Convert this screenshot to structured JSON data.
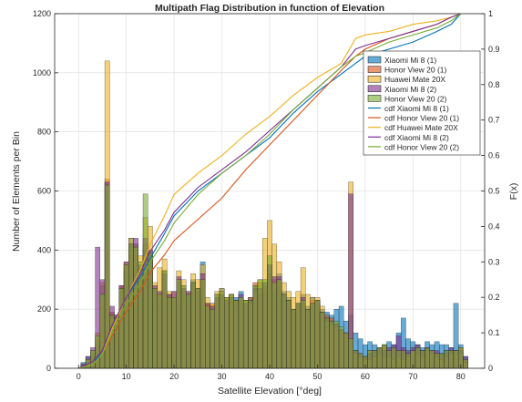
{
  "chart_data": {
    "type": "bar",
    "title": "Multipath Flag Distribution in function of Elevation",
    "xlabel": "Satellite Elevation [°deg]",
    "ylabel": "Number of Elements per Bin",
    "ylabel_right": "F(x)",
    "xlim": [
      -5,
      85
    ],
    "ylim": [
      0,
      1200
    ],
    "ylim_right": [
      0,
      1
    ],
    "grid": true,
    "legend_position": "top-right",
    "x_ticks": [
      "0",
      "10",
      "20",
      "30",
      "40",
      "50",
      "60",
      "70",
      "80"
    ],
    "y_ticks": [
      "0",
      "200",
      "400",
      "600",
      "800",
      "1000",
      "1200"
    ],
    "y_ticks_right": [
      "0",
      "0.1",
      "0.2",
      "0.3",
      "0.4",
      "0.5",
      "0.6",
      "0.7",
      "0.8",
      "0.9",
      "1"
    ],
    "bin_x": [
      1,
      2,
      3,
      4,
      5,
      6,
      7,
      8,
      9,
      10,
      11,
      12,
      13,
      14,
      15,
      16,
      17,
      18,
      19,
      20,
      21,
      22,
      23,
      24,
      25,
      26,
      27,
      28,
      29,
      30,
      31,
      32,
      33,
      34,
      35,
      36,
      37,
      38,
      39,
      40,
      41,
      42,
      43,
      44,
      45,
      46,
      47,
      48,
      49,
      50,
      51,
      52,
      53,
      54,
      55,
      56,
      57,
      58,
      59,
      60,
      61,
      62,
      63,
      64,
      65,
      66,
      67,
      68,
      69,
      70,
      71,
      72,
      73,
      74,
      75,
      76,
      77,
      78,
      79,
      80,
      81
    ],
    "series": [
      {
        "name": "Xiaomi Mi 8 (1)",
        "kind": "histogram",
        "color": "#0072BD",
        "values": [
          20,
          40,
          50,
          80,
          280,
          630,
          180,
          170,
          260,
          330,
          440,
          420,
          330,
          400,
          390,
          260,
          240,
          330,
          250,
          240,
          290,
          260,
          250,
          300,
          260,
          360,
          200,
          200,
          250,
          270,
          240,
          250,
          240,
          260,
          230,
          240,
          280,
          250,
          260,
          300,
          260,
          320,
          260,
          240,
          200,
          220,
          250,
          210,
          240,
          230,
          200,
          190,
          180,
          200,
          210,
          160,
          180,
          120,
          100,
          80,
          90,
          80,
          70,
          80,
          90,
          80,
          120,
          170,
          100,
          90,
          80,
          70,
          90,
          80,
          90,
          80,
          80,
          70,
          220,
          80,
          40
        ]
      },
      {
        "name": "Honor View 20 (1)",
        "kind": "histogram",
        "color": "#D95319",
        "values": [
          10,
          20,
          40,
          100,
          230,
          640,
          190,
          180,
          280,
          350,
          410,
          400,
          340,
          420,
          380,
          270,
          250,
          330,
          240,
          240,
          300,
          280,
          250,
          280,
          270,
          300,
          220,
          220,
          250,
          260,
          240,
          250,
          230,
          230,
          230,
          240,
          290,
          290,
          280,
          320,
          300,
          300,
          250,
          230,
          200,
          220,
          220,
          200,
          230,
          230,
          190,
          180,
          170,
          150,
          130,
          110,
          100,
          60,
          50,
          40,
          60,
          60,
          70,
          80,
          60,
          70,
          60,
          60,
          50,
          60,
          70,
          60,
          70,
          60,
          50,
          50,
          50,
          60,
          60,
          70,
          30
        ]
      },
      {
        "name": "Huawei Mate 20X",
        "kind": "histogram",
        "color": "#EDB120",
        "values": [
          10,
          30,
          60,
          120,
          290,
          1040,
          170,
          160,
          270,
          360,
          440,
          420,
          380,
          510,
          480,
          290,
          340,
          370,
          260,
          260,
          330,
          300,
          260,
          320,
          300,
          350,
          240,
          220,
          260,
          270,
          240,
          250,
          230,
          240,
          230,
          220,
          260,
          300,
          440,
          500,
          420,
          360,
          290,
          260,
          240,
          260,
          340,
          250,
          240,
          240,
          210,
          160,
          150,
          140,
          130,
          120,
          630,
          50,
          40,
          30,
          30,
          40,
          50,
          40,
          40,
          30,
          40,
          30,
          40,
          60,
          50,
          40,
          60,
          50,
          40,
          30,
          40,
          50,
          60,
          50,
          20
        ]
      },
      {
        "name": "Xiaomi Mi 8 (2)",
        "kind": "histogram",
        "color": "#7E2F8E",
        "values": [
          15,
          40,
          70,
          410,
          300,
          630,
          210,
          180,
          280,
          360,
          420,
          440,
          350,
          440,
          400,
          280,
          260,
          320,
          250,
          260,
          310,
          270,
          260,
          290,
          270,
          320,
          220,
          210,
          240,
          250,
          230,
          240,
          230,
          250,
          220,
          230,
          270,
          270,
          290,
          350,
          310,
          310,
          250,
          230,
          200,
          220,
          240,
          200,
          220,
          230,
          190,
          170,
          160,
          150,
          130,
          120,
          590,
          60,
          50,
          40,
          50,
          60,
          70,
          60,
          70,
          80,
          110,
          70,
          60,
          70,
          80,
          60,
          70,
          60,
          60,
          50,
          60,
          70,
          60,
          60,
          40
        ]
      },
      {
        "name": "Honor View 20 (2)",
        "kind": "histogram",
        "color": "#77AC30",
        "values": [
          10,
          30,
          60,
          110,
          250,
          620,
          180,
          170,
          270,
          350,
          420,
          410,
          360,
          590,
          390,
          270,
          250,
          330,
          240,
          240,
          300,
          280,
          250,
          290,
          270,
          300,
          210,
          200,
          250,
          260,
          240,
          250,
          230,
          240,
          230,
          230,
          280,
          300,
          300,
          380,
          290,
          300,
          250,
          230,
          200,
          220,
          230,
          200,
          220,
          230,
          190,
          170,
          160,
          160,
          140,
          120,
          100,
          60,
          50,
          40,
          60,
          60,
          70,
          80,
          60,
          70,
          60,
          60,
          50,
          60,
          70,
          60,
          70,
          60,
          50,
          50,
          60,
          60,
          60,
          70,
          30
        ]
      },
      {
        "name": "cdf Xiaomi Mi 8 (1)",
        "kind": "cdf",
        "color": "#0072BD",
        "x": [
          0,
          3,
          5,
          7,
          10,
          13,
          15,
          18,
          20,
          25,
          30,
          35,
          40,
          45,
          50,
          55,
          58,
          60,
          65,
          70,
          75,
          78,
          80
        ],
        "y": [
          0,
          0.01,
          0.05,
          0.12,
          0.2,
          0.26,
          0.31,
          0.38,
          0.43,
          0.5,
          0.55,
          0.6,
          0.65,
          0.72,
          0.78,
          0.83,
          0.86,
          0.88,
          0.9,
          0.92,
          0.95,
          0.97,
          1.0
        ]
      },
      {
        "name": "cdf Honor View 20 (1)",
        "kind": "cdf",
        "color": "#D95319",
        "x": [
          0,
          3,
          5,
          7,
          10,
          13,
          15,
          18,
          20,
          25,
          30,
          35,
          40,
          45,
          50,
          55,
          58,
          60,
          65,
          70,
          75,
          78,
          80
        ],
        "y": [
          0,
          0.01,
          0.04,
          0.09,
          0.16,
          0.22,
          0.27,
          0.32,
          0.36,
          0.42,
          0.48,
          0.56,
          0.63,
          0.7,
          0.77,
          0.84,
          0.88,
          0.9,
          0.93,
          0.95,
          0.97,
          0.99,
          1.0
        ]
      },
      {
        "name": "cdf Huawei Mate 20X",
        "kind": "cdf",
        "color": "#EDB120",
        "x": [
          0,
          3,
          5,
          7,
          10,
          13,
          15,
          18,
          20,
          25,
          30,
          35,
          40,
          45,
          50,
          55,
          58,
          60,
          65,
          70,
          75,
          78,
          80
        ],
        "y": [
          0,
          0.01,
          0.04,
          0.11,
          0.2,
          0.28,
          0.35,
          0.43,
          0.49,
          0.55,
          0.6,
          0.66,
          0.71,
          0.77,
          0.82,
          0.86,
          0.93,
          0.94,
          0.95,
          0.97,
          0.98,
          0.99,
          1.0
        ]
      },
      {
        "name": "cdf Xiaomi Mi 8 (2)",
        "kind": "cdf",
        "color": "#7E2F8E",
        "x": [
          0,
          3,
          5,
          7,
          10,
          13,
          15,
          18,
          20,
          25,
          30,
          35,
          40,
          45,
          50,
          55,
          58,
          60,
          65,
          70,
          75,
          78,
          80
        ],
        "y": [
          0,
          0.02,
          0.05,
          0.12,
          0.2,
          0.27,
          0.33,
          0.39,
          0.44,
          0.51,
          0.56,
          0.61,
          0.67,
          0.73,
          0.79,
          0.85,
          0.9,
          0.91,
          0.93,
          0.95,
          0.97,
          0.99,
          1.0
        ]
      },
      {
        "name": "cdf Honor View 20 (2)",
        "kind": "cdf",
        "color": "#77AC30",
        "x": [
          0,
          3,
          5,
          7,
          10,
          13,
          15,
          18,
          20,
          25,
          30,
          35,
          40,
          45,
          50,
          55,
          58,
          60,
          65,
          70,
          75,
          78,
          80
        ],
        "y": [
          0,
          0.01,
          0.04,
          0.1,
          0.18,
          0.24,
          0.3,
          0.36,
          0.41,
          0.49,
          0.55,
          0.6,
          0.66,
          0.73,
          0.79,
          0.85,
          0.88,
          0.89,
          0.92,
          0.94,
          0.96,
          0.98,
          1.0
        ]
      }
    ]
  }
}
